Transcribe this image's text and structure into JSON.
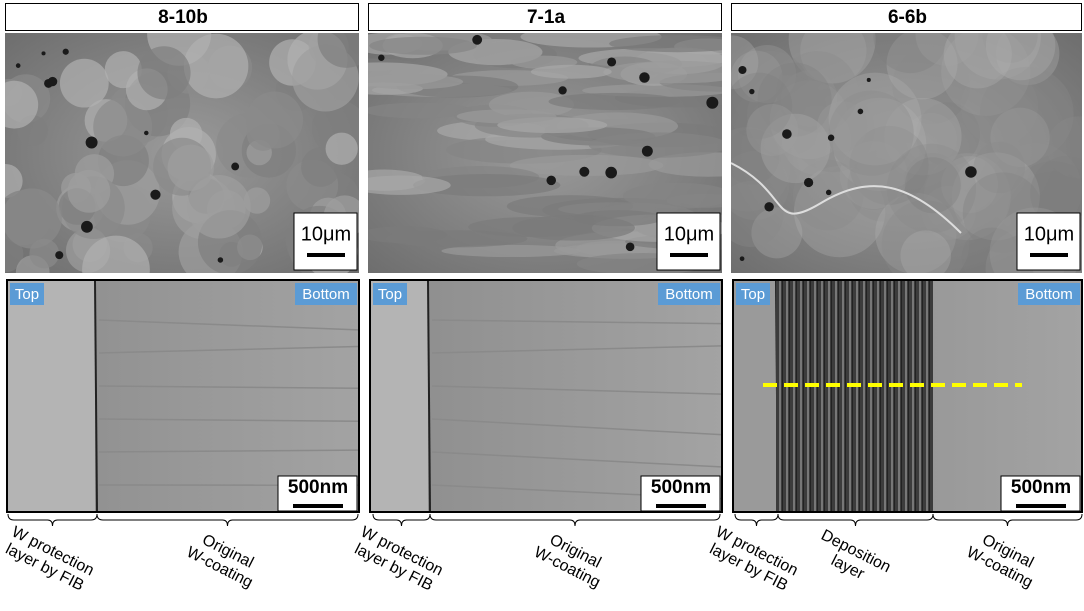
{
  "panels": [
    {
      "title": "8-10b",
      "top_scale": "10μm",
      "bottom_scale": "500nm",
      "left_tag": "Top",
      "right_tag": "Bottom",
      "annotations": [
        {
          "lines": [
            "W protection",
            "layer by FIB"
          ]
        },
        {
          "lines": [
            "Original",
            "W-coating"
          ]
        }
      ]
    },
    {
      "title": "7-1a",
      "top_scale": "10μm",
      "bottom_scale": "500nm",
      "left_tag": "Top",
      "right_tag": "Bottom",
      "annotations": [
        {
          "lines": [
            "W protection",
            "layer by FIB"
          ]
        },
        {
          "lines": [
            "Original",
            "W-coating"
          ]
        }
      ]
    },
    {
      "title": "6-6b",
      "top_scale": "10μm",
      "bottom_scale": "500nm",
      "left_tag": "Top",
      "right_tag": "Bottom",
      "annotations": [
        {
          "lines": [
            "W protection",
            "layer by FIB"
          ]
        },
        {
          "lines": [
            "Deposition",
            "layer"
          ]
        },
        {
          "lines": [
            "Original",
            "W-coating"
          ]
        }
      ]
    }
  ]
}
